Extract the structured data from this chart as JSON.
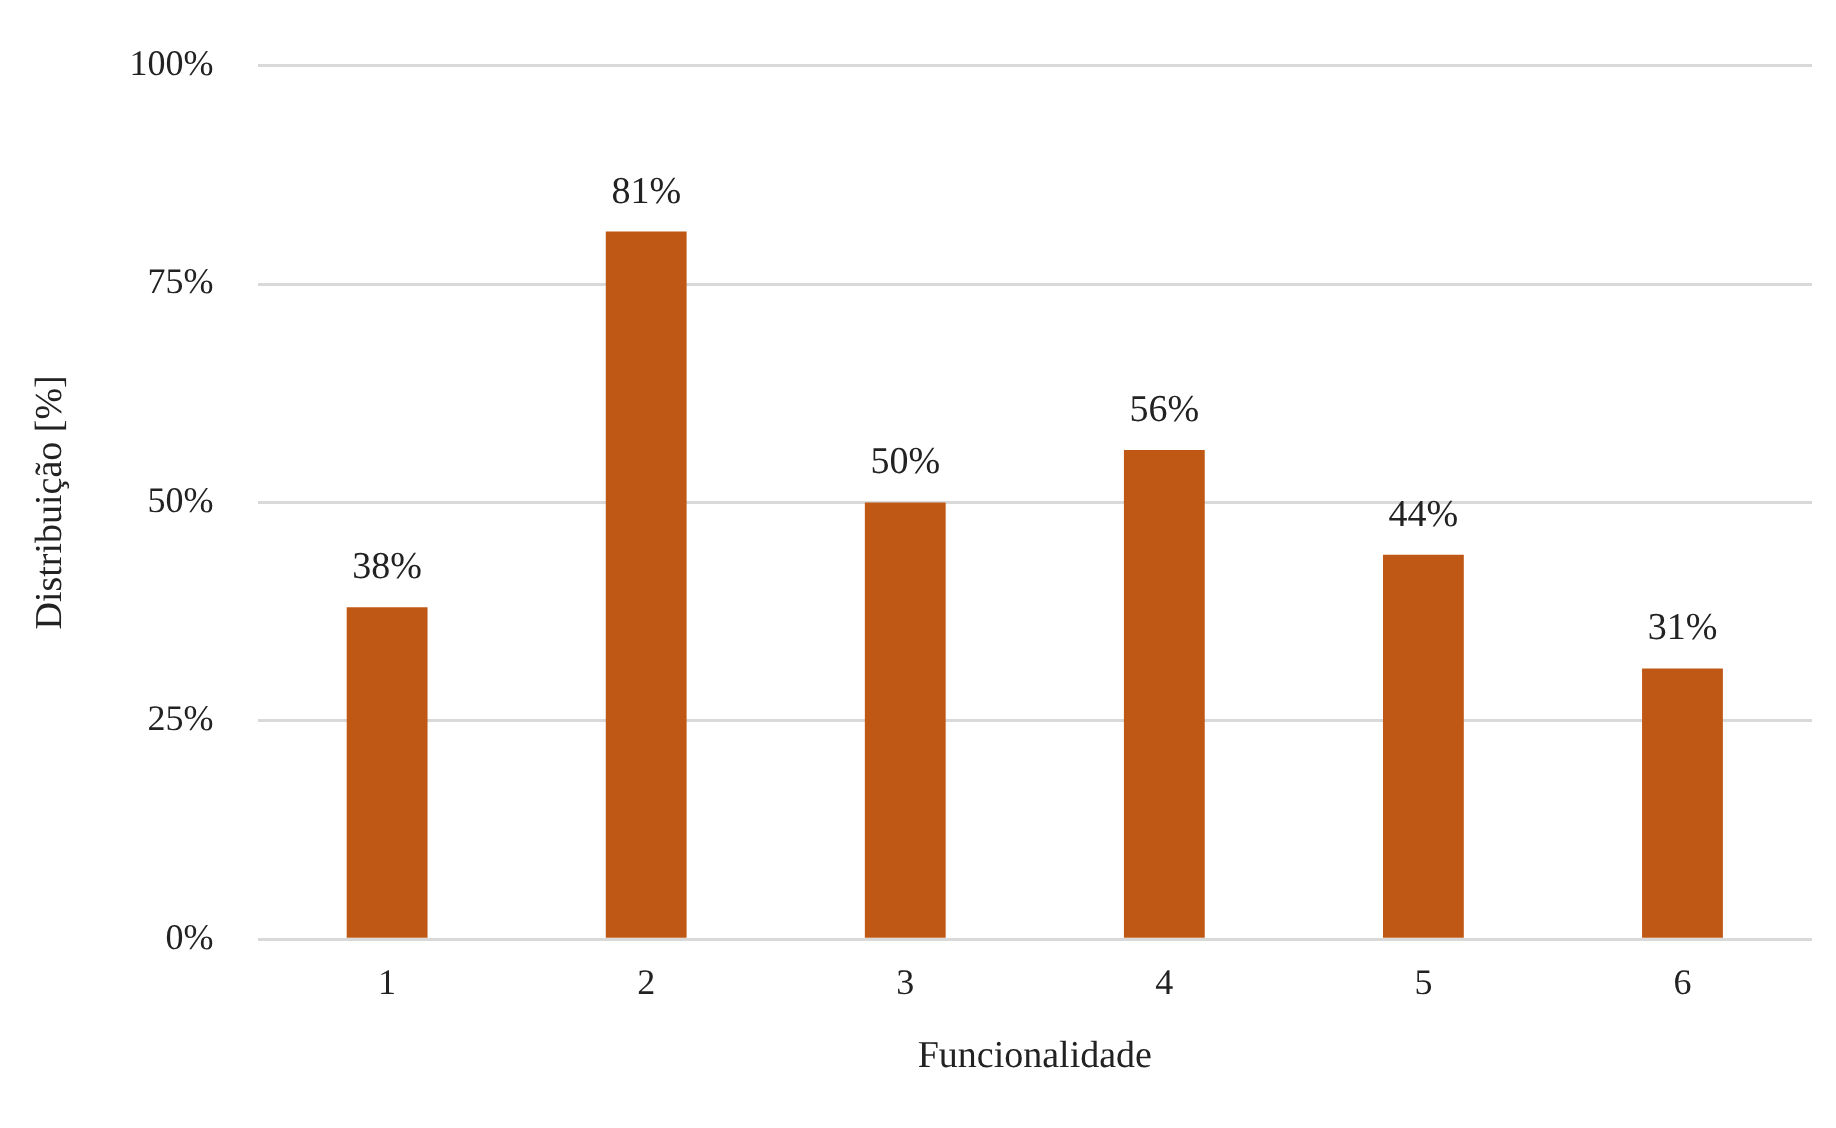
{
  "chart_data": {
    "type": "bar",
    "xlabel": "Funcionalidade",
    "ylabel": "Distribuição [%]",
    "categories": [
      "1",
      "2",
      "3",
      "4",
      "5",
      "6"
    ],
    "values": [
      38,
      81,
      50,
      56,
      44,
      31
    ],
    "color": "#c05815",
    "ylim": [
      0,
      100
    ],
    "yticks": [
      {
        "value": 0,
        "label": "0%"
      },
      {
        "value": 25,
        "label": "25%"
      },
      {
        "value": 50,
        "label": "50%"
      },
      {
        "value": 75,
        "label": "75%"
      },
      {
        "value": 100,
        "label": "100%"
      }
    ],
    "grid": "y",
    "legend": false,
    "data_labels": true,
    "value_labels": [
      "38%",
      "81%",
      "50%",
      "56%",
      "44%",
      "31%"
    ]
  }
}
